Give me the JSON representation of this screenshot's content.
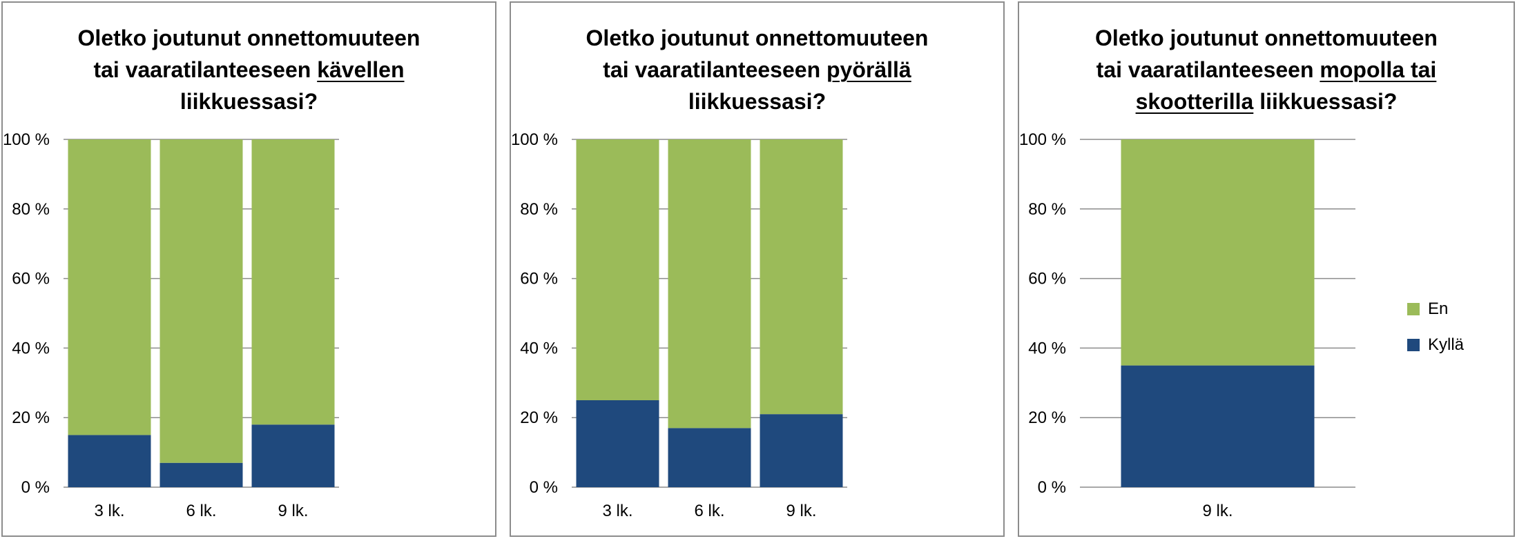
{
  "colors": {
    "en": "#9bbb59",
    "kylla": "#1f497d",
    "grid": "#8c8c8c",
    "border": "#8c8c8c"
  },
  "legend": {
    "en": "En",
    "kylla": "Kyllä"
  },
  "chart_data": [
    {
      "type": "bar",
      "stacked": true,
      "title_lines": [
        [
          "Oletko joutunut onnettomuuteen"
        ],
        [
          "tai vaaratilanteeseen ",
          "kävellen"
        ],
        [
          "liikkuessasi?"
        ]
      ],
      "title_underlined": [
        "kävellen"
      ],
      "categories": [
        "3 lk.",
        "6 lk.",
        "9 lk."
      ],
      "ylim": [
        0,
        100
      ],
      "yticks": [
        "0 %",
        "20 %",
        "40 %",
        "60 %",
        "80 %",
        "100 %"
      ],
      "series": [
        {
          "name": "Kyllä",
          "values": [
            15,
            7,
            18
          ]
        },
        {
          "name": "En",
          "values": [
            85,
            93,
            82
          ]
        }
      ]
    },
    {
      "type": "bar",
      "stacked": true,
      "title_lines": [
        [
          "Oletko joutunut onnettomuuteen"
        ],
        [
          "tai vaaratilanteeseen ",
          "pyörällä"
        ],
        [
          "liikkuessasi?"
        ]
      ],
      "title_underlined": [
        "pyörällä"
      ],
      "categories": [
        "3 lk.",
        "6 lk.",
        "9 lk."
      ],
      "ylim": [
        0,
        100
      ],
      "yticks": [
        "0 %",
        "20 %",
        "40 %",
        "60 %",
        "80 %",
        "100 %"
      ],
      "series": [
        {
          "name": "Kyllä",
          "values": [
            25,
            17,
            21
          ]
        },
        {
          "name": "En",
          "values": [
            75,
            83,
            79
          ]
        }
      ]
    },
    {
      "type": "bar",
      "stacked": true,
      "title_lines": [
        [
          "Oletko joutunut onnettomuuteen"
        ],
        [
          "tai vaaratilanteeseen ",
          "mopolla tai"
        ],
        [
          "skootterilla",
          " liikkuessasi?"
        ]
      ],
      "title_underlined": [
        "mopolla tai",
        "skootterilla"
      ],
      "categories": [
        "9 lk."
      ],
      "ylim": [
        0,
        100
      ],
      "yticks": [
        "0 %",
        "20 %",
        "40 %",
        "60 %",
        "80 %",
        "100 %"
      ],
      "series": [
        {
          "name": "Kyllä",
          "values": [
            35
          ]
        },
        {
          "name": "En",
          "values": [
            65
          ]
        }
      ]
    }
  ]
}
